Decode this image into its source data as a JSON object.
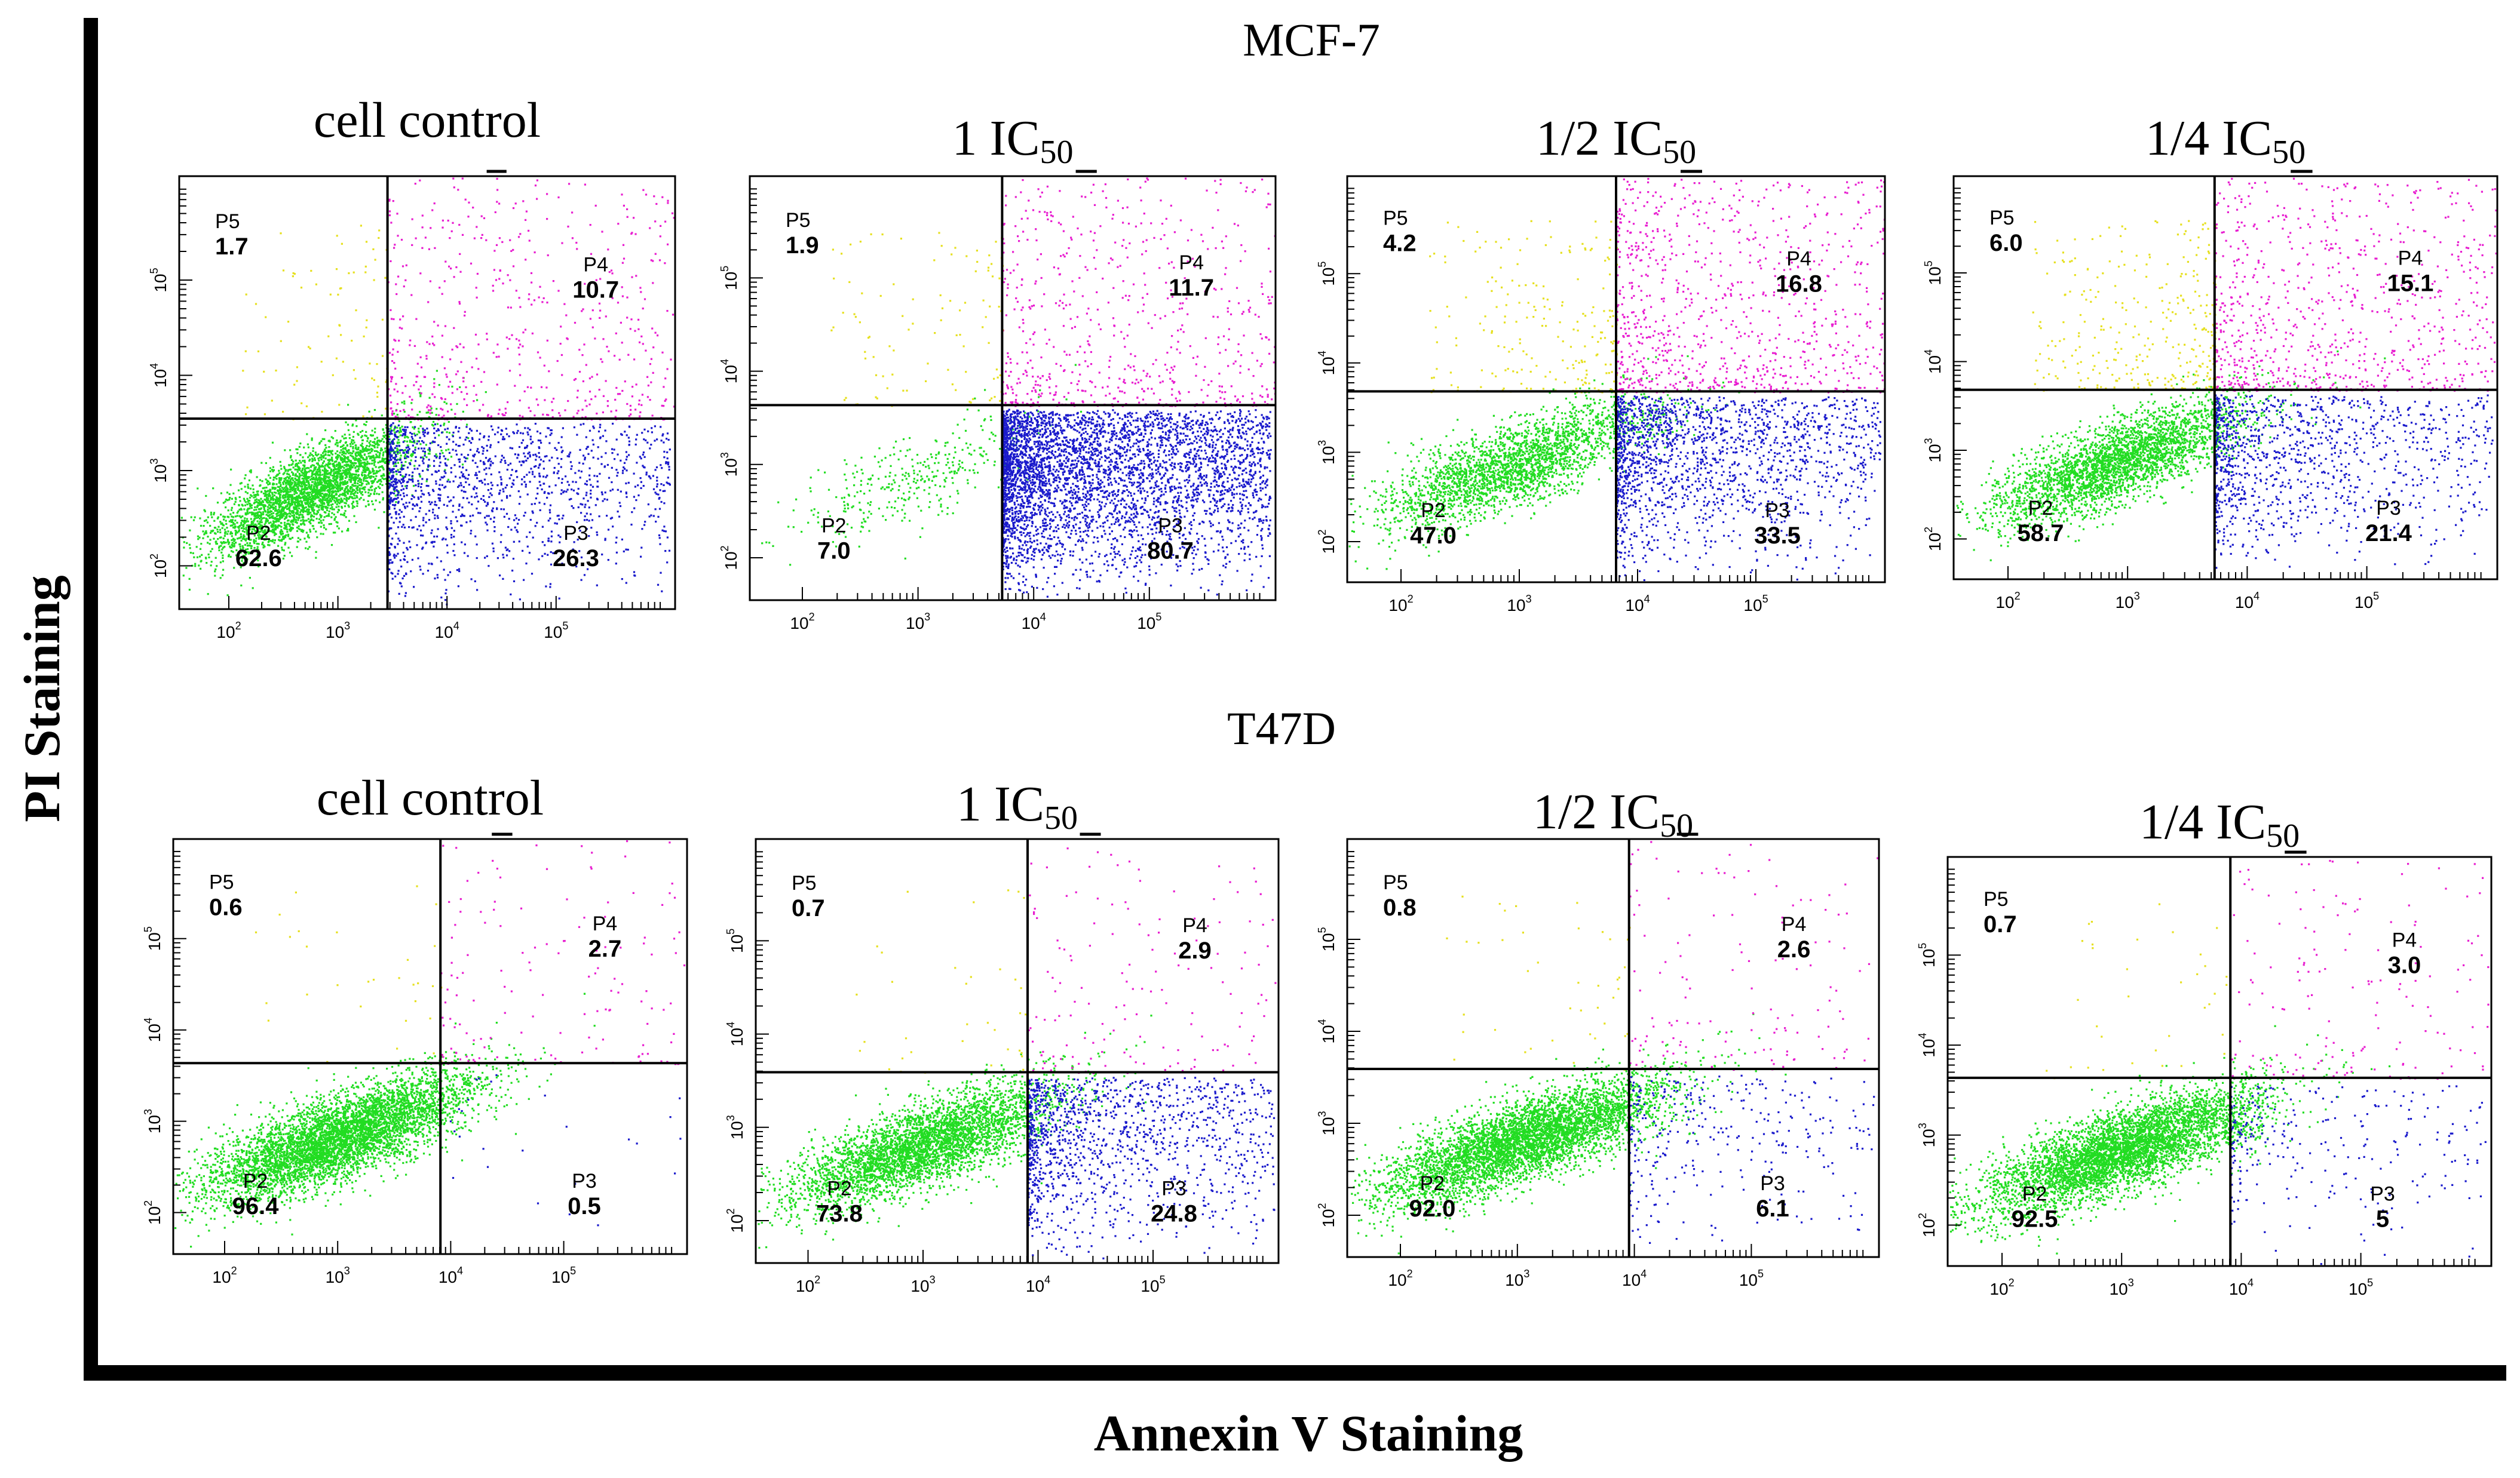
{
  "figure": {
    "xlabel": "Annexin V Staining",
    "ylabel": "PI Staining",
    "rows": [
      "MCF-7",
      "T47D"
    ]
  },
  "colors": {
    "P2": "#22dd22",
    "P3": "#1a1acc",
    "P4": "#e81ed0",
    "P5": "#e6e020",
    "axis": "#000000"
  },
  "chart_data": [
    {
      "type": "scatter",
      "cell_line": "MCF-7",
      "title": "cell control",
      "title_sub": "",
      "quadrants": {
        "P5": "1.7",
        "P4": "10.7",
        "P2": "62.6",
        "P3": "26.3"
      },
      "xscale": "log",
      "yscale": "log",
      "xticks": [
        "10",
        "10",
        "10",
        "10"
      ],
      "xtick_exp": [
        "2",
        "3",
        "4",
        "5"
      ],
      "yticks": [
        "10",
        "10",
        "10",
        "10"
      ],
      "ytick_exp": [
        "2",
        "3",
        "4",
        "5"
      ]
    },
    {
      "type": "scatter",
      "cell_line": "MCF-7",
      "title": "1 IC",
      "title_sub": "50",
      "quadrants": {
        "P5": "1.9",
        "P4": "11.7",
        "P2": "7.0",
        "P3": "80.7"
      },
      "xscale": "log",
      "yscale": "log",
      "xticks": [
        "10",
        "10",
        "10",
        "10"
      ],
      "xtick_exp": [
        "2",
        "3",
        "4",
        "5"
      ],
      "yticks": [
        "10",
        "10",
        "10",
        "10"
      ],
      "ytick_exp": [
        "2",
        "3",
        "4",
        "5"
      ]
    },
    {
      "type": "scatter",
      "cell_line": "MCF-7",
      "title": "1/2 IC",
      "title_sub": "50",
      "quadrants": {
        "P5": "4.2",
        "P4": "16.8",
        "P2": "47.0",
        "P3": "33.5"
      },
      "xscale": "log",
      "yscale": "log",
      "xticks": [
        "10",
        "10",
        "10",
        "10"
      ],
      "xtick_exp": [
        "2",
        "3",
        "4",
        "5"
      ],
      "yticks": [
        "10",
        "10",
        "10",
        "10"
      ],
      "ytick_exp": [
        "2",
        "3",
        "4",
        "5"
      ]
    },
    {
      "type": "scatter",
      "cell_line": "MCF-7",
      "title": "1/4 IC",
      "title_sub": "50",
      "quadrants": {
        "P5": "6.0",
        "P4": "15.1",
        "P2": "58.7",
        "P3": "21.4"
      },
      "xscale": "log",
      "yscale": "log",
      "xticks": [
        "10",
        "10",
        "10",
        "10"
      ],
      "xtick_exp": [
        "2",
        "3",
        "4",
        "5"
      ],
      "yticks": [
        "10",
        "10",
        "10",
        "10"
      ],
      "ytick_exp": [
        "2",
        "3",
        "4",
        "5"
      ]
    },
    {
      "type": "scatter",
      "cell_line": "T47D",
      "title": "cell control",
      "title_sub": "",
      "quadrants": {
        "P5": "0.6",
        "P4": "2.7",
        "P2": "96.4",
        "P3": "0.5"
      },
      "xscale": "log",
      "yscale": "log",
      "xticks": [
        "10",
        "10",
        "10",
        "10"
      ],
      "xtick_exp": [
        "2",
        "3",
        "4",
        "5"
      ],
      "yticks": [
        "10",
        "10",
        "10",
        "10"
      ],
      "ytick_exp": [
        "2",
        "3",
        "4",
        "5"
      ]
    },
    {
      "type": "scatter",
      "cell_line": "T47D",
      "title": "1 IC",
      "title_sub": "50",
      "quadrants": {
        "P5": "0.7",
        "P4": "2.9",
        "P2": "73.8",
        "P3": "24.8"
      },
      "xscale": "log",
      "yscale": "log",
      "xticks": [
        "10",
        "10",
        "10",
        "10"
      ],
      "xtick_exp": [
        "2",
        "3",
        "4",
        "5"
      ],
      "yticks": [
        "10",
        "10",
        "10",
        "10"
      ],
      "ytick_exp": [
        "2",
        "3",
        "4",
        "5"
      ]
    },
    {
      "type": "scatter",
      "cell_line": "T47D",
      "title": "1/2 IC",
      "title_sub": "50",
      "quadrants": {
        "P5": "0.8",
        "P4": "2.6",
        "P2": "92.0",
        "P3": "6.1"
      },
      "xscale": "log",
      "yscale": "log",
      "xticks": [
        "10",
        "10",
        "10",
        "10"
      ],
      "xtick_exp": [
        "2",
        "3",
        "4",
        "5"
      ],
      "yticks": [
        "10",
        "10",
        "10",
        "10"
      ],
      "ytick_exp": [
        "2",
        "3",
        "4",
        "5"
      ]
    },
    {
      "type": "scatter",
      "cell_line": "T47D",
      "title": "1/4 IC",
      "title_sub": "50",
      "quadrants": {
        "P5": "0.7",
        "P4": "3.0",
        "P2": "92.5",
        "P3": "5"
      },
      "xscale": "log",
      "yscale": "log",
      "xticks": [
        "10",
        "10",
        "10",
        "10"
      ],
      "xtick_exp": [
        "2",
        "3",
        "4",
        "5"
      ],
      "yticks": [
        "10",
        "10",
        "10",
        "10"
      ],
      "ytick_exp": [
        "2",
        "3",
        "4",
        "5"
      ]
    }
  ]
}
